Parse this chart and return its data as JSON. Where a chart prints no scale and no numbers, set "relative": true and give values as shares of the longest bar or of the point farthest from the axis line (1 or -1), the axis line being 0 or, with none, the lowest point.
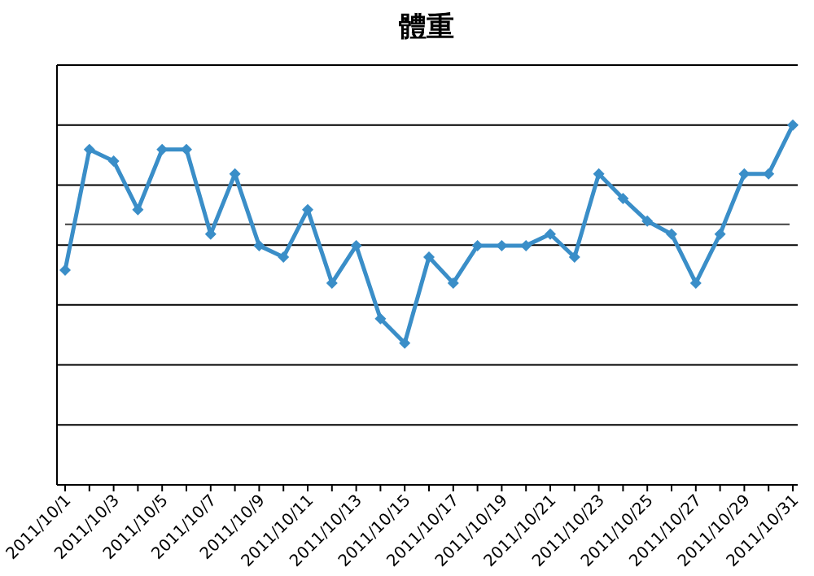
{
  "chart_data": {
    "type": "line",
    "title": "體重",
    "categories": [
      "2011/10/1",
      null,
      "2011/10/3",
      null,
      "2011/10/5",
      null,
      "2011/10/7",
      null,
      "2011/10/9",
      null,
      "2011/10/11",
      null,
      "2011/10/13",
      null,
      "2011/10/15",
      null,
      "2011/10/17",
      null,
      "2011/10/19",
      null,
      "2011/10/21",
      null,
      "2011/10/23",
      null,
      "2011/10/25",
      null,
      "2011/10/27",
      null,
      "2011/10/29",
      null,
      "2011/10/31"
    ],
    "series": [
      {
        "color": "#3a8ec8",
        "values": [
          0.597,
          0.932,
          0.9,
          0.765,
          0.932,
          0.932,
          0.697,
          0.864,
          0.665,
          0.633,
          0.765,
          0.561,
          0.665,
          0.462,
          0.394,
          0.633,
          0.561,
          0.665,
          0.665,
          0.665,
          0.697,
          0.633,
          0.864,
          0.796,
          0.733,
          0.697,
          0.561,
          0.697,
          0.864,
          0.864,
          1
        ]
      }
    ],
    "relative": true,
    "marker": "diamond",
    "line_style": "solid",
    "grid": "y",
    "tick_labels": "x",
    "ref_lines": [
      {
        "axis": "y",
        "value": 0.724,
        "color": "#404040"
      }
    ]
  }
}
